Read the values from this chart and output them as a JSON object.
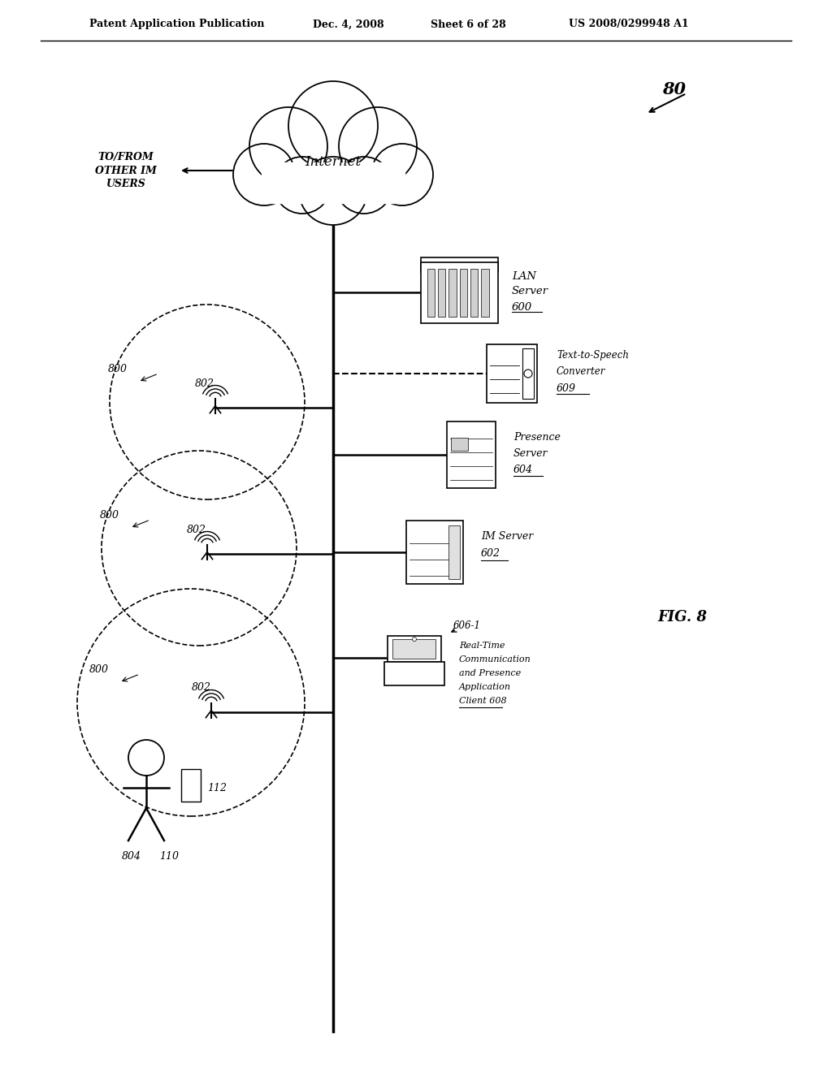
{
  "bg_color": "#ffffff",
  "header_text": "Patent Application Publication",
  "header_date": "Dec. 4, 2008",
  "header_sheet": "Sheet 6 of 28",
  "header_patent": "US 2008/0299948 A1",
  "fig_label": "FIG. 8",
  "diagram_label": "80"
}
